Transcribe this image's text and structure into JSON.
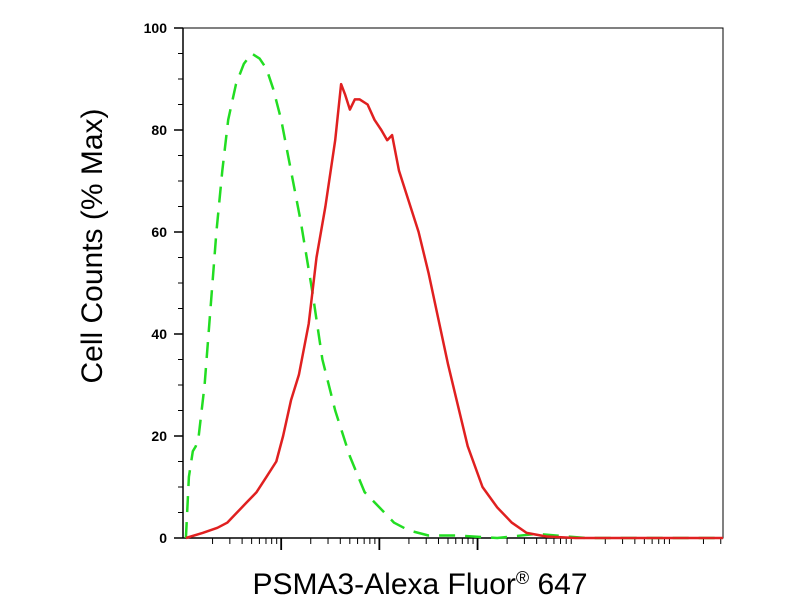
{
  "chart_data": {
    "type": "line",
    "ylabel": "Cell Counts (% Max)",
    "xlabel_parts": {
      "main": "PSMA3-Alexa Fluor",
      "mark": "®",
      "tail": " 647"
    },
    "x_scale": "log",
    "x_tick_labels": "none",
    "ylim": [
      0,
      100
    ],
    "yticks": [
      0,
      20,
      40,
      60,
      80,
      100
    ],
    "grid": false,
    "legend": "none",
    "series": [
      {
        "color": "#22dd22",
        "style": "dashed",
        "points": [
          [
            0.03,
            0
          ],
          [
            0.06,
            12
          ],
          [
            0.1,
            17
          ],
          [
            0.13,
            18
          ],
          [
            0.16,
            20
          ],
          [
            0.22,
            30
          ],
          [
            0.28,
            45
          ],
          [
            0.34,
            60
          ],
          [
            0.4,
            72
          ],
          [
            0.46,
            82
          ],
          [
            0.54,
            89
          ],
          [
            0.62,
            93
          ],
          [
            0.7,
            95
          ],
          [
            0.78,
            94
          ],
          [
            0.85,
            92
          ],
          [
            0.92,
            88
          ],
          [
            1.0,
            82
          ],
          [
            1.1,
            72
          ],
          [
            1.2,
            62
          ],
          [
            1.32,
            48
          ],
          [
            1.42,
            35
          ],
          [
            1.55,
            25
          ],
          [
            1.7,
            16
          ],
          [
            1.85,
            9
          ],
          [
            2.0,
            6
          ],
          [
            2.15,
            3
          ],
          [
            2.3,
            1.5
          ],
          [
            2.5,
            0.5
          ],
          [
            2.8,
            0.5
          ],
          [
            3.2,
            0
          ],
          [
            3.6,
            0.8
          ],
          [
            4.1,
            0
          ],
          [
            4.6,
            0
          ],
          [
            5.5,
            0
          ]
        ]
      },
      {
        "color": "#e02020",
        "style": "solid",
        "points": [
          [
            0.03,
            0
          ],
          [
            0.2,
            1
          ],
          [
            0.35,
            2
          ],
          [
            0.45,
            3
          ],
          [
            0.55,
            5
          ],
          [
            0.65,
            7
          ],
          [
            0.75,
            9
          ],
          [
            0.85,
            12
          ],
          [
            0.95,
            15
          ],
          [
            1.02,
            20
          ],
          [
            1.1,
            27
          ],
          [
            1.18,
            32
          ],
          [
            1.28,
            42
          ],
          [
            1.36,
            55
          ],
          [
            1.45,
            65
          ],
          [
            1.55,
            78
          ],
          [
            1.61,
            89
          ],
          [
            1.65,
            87
          ],
          [
            1.7,
            84
          ],
          [
            1.75,
            86
          ],
          [
            1.8,
            86
          ],
          [
            1.88,
            85
          ],
          [
            1.95,
            82
          ],
          [
            2.02,
            80
          ],
          [
            2.08,
            78
          ],
          [
            2.13,
            79
          ],
          [
            2.2,
            72
          ],
          [
            2.3,
            66
          ],
          [
            2.4,
            60
          ],
          [
            2.5,
            52
          ],
          [
            2.6,
            43
          ],
          [
            2.7,
            34
          ],
          [
            2.8,
            26
          ],
          [
            2.9,
            18
          ],
          [
            3.05,
            10
          ],
          [
            3.2,
            6
          ],
          [
            3.35,
            3
          ],
          [
            3.5,
            1
          ],
          [
            3.7,
            0.3
          ],
          [
            4.0,
            0
          ],
          [
            5.5,
            0
          ]
        ]
      }
    ]
  }
}
